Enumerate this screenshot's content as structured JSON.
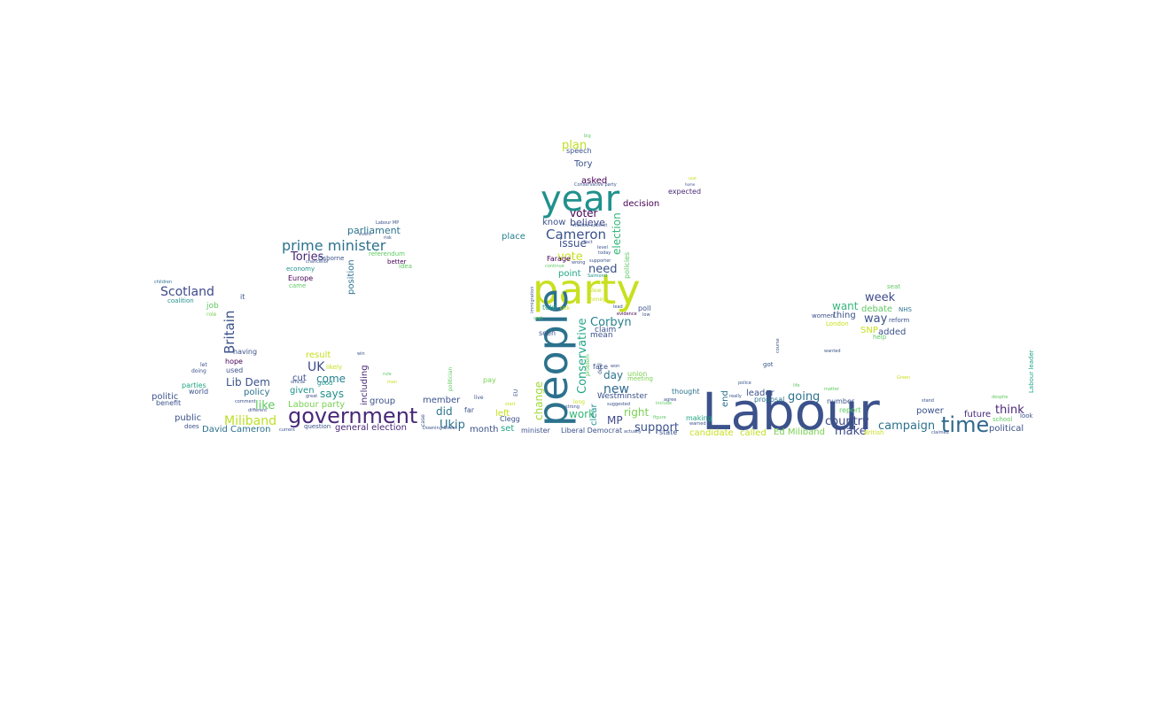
{
  "wordcloud": {
    "words": [
      {
        "text": "Labour",
        "color": "#3b528b"
      },
      {
        "text": "party",
        "color": "#c8e020"
      },
      {
        "text": "people",
        "color": "#2c728e"
      },
      {
        "text": "year",
        "color": "#21918c"
      },
      {
        "text": "government",
        "color": "#482878"
      },
      {
        "text": "time",
        "color": "#31688e"
      },
      {
        "text": "Cameron",
        "color": "#3b528b"
      },
      {
        "text": "prime minister",
        "color": "#2c728e"
      },
      {
        "text": "Miliband",
        "color": "#bddf26"
      },
      {
        "text": "Scotland",
        "color": "#3e4a89"
      },
      {
        "text": "Tories",
        "color": "#482878"
      },
      {
        "text": "Britain",
        "color": "#3b528b"
      },
      {
        "text": "Conservative",
        "color": "#21a685"
      },
      {
        "text": "Corbyn",
        "color": "#26828e"
      },
      {
        "text": "country",
        "color": "#3e4a89"
      },
      {
        "text": "campaign",
        "color": "#2c728e"
      },
      {
        "text": "Ukip",
        "color": "#2c728e"
      },
      {
        "text": "UK",
        "color": "#3e4a89"
      },
      {
        "text": "vote",
        "color": "#c8e020"
      },
      {
        "text": "need",
        "color": "#3b528b"
      },
      {
        "text": "new",
        "color": "#31688e"
      },
      {
        "text": "support",
        "color": "#3b528b"
      },
      {
        "text": "going",
        "color": "#2c728e"
      },
      {
        "text": "think",
        "color": "#482878"
      },
      {
        "text": "make",
        "color": "#3e4a89"
      },
      {
        "text": "week",
        "color": "#3e4a89"
      },
      {
        "text": "way",
        "color": "#3b528b"
      },
      {
        "text": "want",
        "color": "#35b779"
      },
      {
        "text": "says",
        "color": "#21918c"
      },
      {
        "text": "like",
        "color": "#5ec962"
      },
      {
        "text": "Lib Dem",
        "color": "#3b528b"
      },
      {
        "text": "MP",
        "color": "#3e4a89"
      },
      {
        "text": "did",
        "color": "#2c728e"
      },
      {
        "text": "election",
        "color": "#35b779"
      },
      {
        "text": "change",
        "color": "#a0da39"
      },
      {
        "text": "right",
        "color": "#7ad151"
      },
      {
        "text": "day",
        "color": "#2c728e"
      },
      {
        "text": "voter",
        "color": "#440154"
      },
      {
        "text": "believe",
        "color": "#3e4a89"
      },
      {
        "text": "issue",
        "color": "#3b528b"
      },
      {
        "text": "plan",
        "color": "#bddf26"
      },
      {
        "text": "parliament",
        "color": "#2c728e"
      },
      {
        "text": "come",
        "color": "#26828e"
      },
      {
        "text": "work",
        "color": "#35b779"
      },
      {
        "text": "Labour party",
        "color": "#7ad151"
      },
      {
        "text": "general election",
        "color": "#482878"
      },
      {
        "text": "David Cameron",
        "color": "#2c728e"
      },
      {
        "text": "Ed Miliband",
        "color": "#7ad151"
      },
      {
        "text": "candidate",
        "color": "#c8e020"
      },
      {
        "text": "called",
        "color": "#bddf26"
      },
      {
        "text": "political",
        "color": "#3b528b"
      },
      {
        "text": "future",
        "color": "#482878"
      },
      {
        "text": "power",
        "color": "#3b528b"
      },
      {
        "text": "leader",
        "color": "#3b528b"
      },
      {
        "text": "end",
        "color": "#2c728e"
      },
      {
        "text": "debate",
        "color": "#5ec962"
      },
      {
        "text": "added",
        "color": "#3b528b"
      },
      {
        "text": "thing",
        "color": "#3b528b"
      },
      {
        "text": "SNP",
        "color": "#c8e020"
      },
      {
        "text": "Tory",
        "color": "#3b528b"
      },
      {
        "text": "asked",
        "color": "#440154"
      },
      {
        "text": "decision",
        "color": "#440154"
      },
      {
        "text": "know",
        "color": "#3b528b"
      },
      {
        "text": "place",
        "color": "#26828e"
      },
      {
        "text": "point",
        "color": "#21a685"
      },
      {
        "text": "mean",
        "color": "#3b528b"
      },
      {
        "text": "claim",
        "color": "#3b528b"
      },
      {
        "text": "position",
        "color": "#2c728e"
      },
      {
        "text": "including",
        "color": "#482878"
      },
      {
        "text": "policy",
        "color": "#2c728e"
      },
      {
        "text": "group",
        "color": "#3b528b"
      },
      {
        "text": "member",
        "color": "#3b528b"
      },
      {
        "text": "public",
        "color": "#3b528b"
      },
      {
        "text": "month",
        "color": "#3b528b"
      },
      {
        "text": "result",
        "color": "#c8e020"
      },
      {
        "text": "cut",
        "color": "#3b528b"
      },
      {
        "text": "given",
        "color": "#21918c"
      },
      {
        "text": "left",
        "color": "#c8e020"
      },
      {
        "text": "set",
        "color": "#21a685"
      },
      {
        "text": "clear",
        "color": "#21918c"
      },
      {
        "text": "Westminster",
        "color": "#3b528b"
      },
      {
        "text": "job",
        "color": "#5ec962"
      },
      {
        "text": "politic",
        "color": "#3b528b"
      },
      {
        "text": "policies",
        "color": "#5ec962"
      },
      {
        "text": "speech",
        "color": "#3b528b"
      },
      {
        "text": "expected",
        "color": "#482878"
      },
      {
        "text": "Farage",
        "color": "#440154"
      },
      {
        "text": "told",
        "color": "#21a685"
      },
      {
        "text": "seen",
        "color": "#3b528b"
      },
      {
        "text": "poll",
        "color": "#3b528b"
      },
      {
        "text": "face",
        "color": "#3b528b"
      },
      {
        "text": "union",
        "color": "#7ad151"
      },
      {
        "text": "meeting",
        "color": "#7ad151"
      },
      {
        "text": "thought",
        "color": "#2c728e"
      },
      {
        "text": "proposal",
        "color": "#2c728e"
      },
      {
        "text": "number",
        "color": "#3b528b"
      },
      {
        "text": "report",
        "color": "#5ec962"
      },
      {
        "text": "making",
        "color": "#21a685"
      },
      {
        "text": "state",
        "color": "#3b528b"
      },
      {
        "text": "Liberal Democrat",
        "color": "#3b528b"
      },
      {
        "text": "minister",
        "color": "#3b528b"
      },
      {
        "text": "Clegg",
        "color": "#3b528b"
      },
      {
        "text": "pay",
        "color": "#7ad151"
      },
      {
        "text": "far",
        "color": "#3b528b"
      },
      {
        "text": "question",
        "color": "#3b528b"
      },
      {
        "text": "good",
        "color": "#21918c"
      },
      {
        "text": "used",
        "color": "#3b528b"
      },
      {
        "text": "hope",
        "color": "#440154"
      },
      {
        "text": "having",
        "color": "#3b528b"
      },
      {
        "text": "parties",
        "color": "#21a685"
      },
      {
        "text": "world",
        "color": "#3b528b"
      },
      {
        "text": "benefit",
        "color": "#3b528b"
      },
      {
        "text": "does",
        "color": "#3b528b"
      },
      {
        "text": "coalition",
        "color": "#21918c"
      },
      {
        "text": "economy",
        "color": "#21918c"
      },
      {
        "text": "Europe",
        "color": "#440154"
      },
      {
        "text": "came",
        "color": "#5ec962"
      },
      {
        "text": "Osborne",
        "color": "#3b528b"
      },
      {
        "text": "referendum",
        "color": "#5ec962"
      },
      {
        "text": "better",
        "color": "#440154"
      },
      {
        "text": "idea",
        "color": "#5ec962"
      },
      {
        "text": "it",
        "color": "#3b528b"
      },
      {
        "text": "role",
        "color": "#7ad151"
      },
      {
        "text": "let",
        "color": "#3b528b"
      },
      {
        "text": "doing",
        "color": "#3b528b"
      },
      {
        "text": "children",
        "color": "#2c728e"
      },
      {
        "text": "women",
        "color": "#3b528b"
      },
      {
        "text": "NHS",
        "color": "#2c728e"
      },
      {
        "text": "reform",
        "color": "#3b528b"
      },
      {
        "text": "help",
        "color": "#5ec962"
      },
      {
        "text": "London",
        "color": "#c8e020"
      },
      {
        "text": "seat",
        "color": "#5ec962"
      },
      {
        "text": "school",
        "color": "#5ec962"
      },
      {
        "text": "look",
        "color": "#3b528b"
      },
      {
        "text": "Labour leader",
        "color": "#21a685"
      },
      {
        "text": "got",
        "color": "#3b528b"
      },
      {
        "text": "British",
        "color": "#c8e020"
      },
      {
        "text": "today",
        "color": "#3b528b"
      },
      {
        "text": "level",
        "color": "#3b528b"
      },
      {
        "text": "money",
        "color": "#c8e020"
      },
      {
        "text": "slew",
        "color": "#c8e020"
      },
      {
        "text": "evidence",
        "color": "#440154"
      },
      {
        "text": "lead",
        "color": "#3b528b"
      },
      {
        "text": "Salmond",
        "color": "#21918c"
      },
      {
        "text": "wrong",
        "color": "#3b528b"
      },
      {
        "text": "continue",
        "color": "#5ec962"
      },
      {
        "text": "Conservative party",
        "color": "#3b528b"
      },
      {
        "text": "use",
        "color": "#c8e020"
      },
      {
        "text": "home",
        "color": "#3b528b"
      },
      {
        "text": "Labour MP",
        "color": "#3b528b"
      },
      {
        "text": "risk",
        "color": "#3b528b"
      },
      {
        "text": "event",
        "color": "#3b528b"
      },
      {
        "text": "chancellor",
        "color": "#3b528b"
      },
      {
        "text": "official",
        "color": "#3b528b"
      },
      {
        "text": "great",
        "color": "#3b528b"
      },
      {
        "text": "comment",
        "color": "#3b528b"
      },
      {
        "text": "different",
        "color": "#3b528b"
      },
      {
        "text": "current",
        "color": "#3b528b"
      },
      {
        "text": "Downing Street",
        "color": "#3b528b"
      },
      {
        "text": "EU",
        "color": "#3b528b"
      },
      {
        "text": "live",
        "color": "#3b528b"
      },
      {
        "text": "start",
        "color": "#c8e020"
      },
      {
        "text": "strong",
        "color": "#3b528b"
      },
      {
        "text": "politician",
        "color": "#5ec962"
      },
      {
        "text": "case",
        "color": "#3b528b"
      },
      {
        "text": "immigration",
        "color": "#3b528b"
      },
      {
        "text": "cost",
        "color": "#5ec962"
      },
      {
        "text": "talk",
        "color": "#c8e020"
      },
      {
        "text": "long",
        "color": "#c8e020"
      },
      {
        "text": "suggested",
        "color": "#3b528b"
      },
      {
        "text": "won",
        "color": "#3b528b"
      },
      {
        "text": "deal",
        "color": "#3b528b"
      },
      {
        "text": "problem",
        "color": "#5ec962"
      },
      {
        "text": "agree",
        "color": "#3b528b"
      },
      {
        "text": "include",
        "color": "#5ec962"
      },
      {
        "text": "figure",
        "color": "#5ec962"
      },
      {
        "text": "warned",
        "color": "#3b528b"
      },
      {
        "text": "actually",
        "color": "#3b528b"
      },
      {
        "text": "really",
        "color": "#3b528b"
      },
      {
        "text": "police",
        "color": "#3b528b"
      },
      {
        "text": "life",
        "color": "#5ec962"
      },
      {
        "text": "matter",
        "color": "#5ec962"
      },
      {
        "text": "course",
        "color": "#3b528b"
      },
      {
        "text": "wanted",
        "color": "#3b528b"
      },
      {
        "text": "stand",
        "color": "#3b528b"
      },
      {
        "text": "despite",
        "color": "#5ec962"
      },
      {
        "text": "claimed",
        "color": "#3b528b"
      },
      {
        "text": "Green",
        "color": "#c8e020"
      },
      {
        "text": "big",
        "color": "#5ec962"
      },
      {
        "text": "man",
        "color": "#c8e020"
      },
      {
        "text": "fact",
        "color": "#3b528b"
      },
      {
        "text": "shadow cabinet",
        "color": "#3b528b"
      },
      {
        "text": "win",
        "color": "#3b528b"
      },
      {
        "text": "likely",
        "color": "#c8e020"
      },
      {
        "text": "rule",
        "color": "#5ec962"
      },
      {
        "text": "supporter",
        "color": "#3b528b"
      },
      {
        "text": "low",
        "color": "#3b528b"
      }
    ]
  }
}
